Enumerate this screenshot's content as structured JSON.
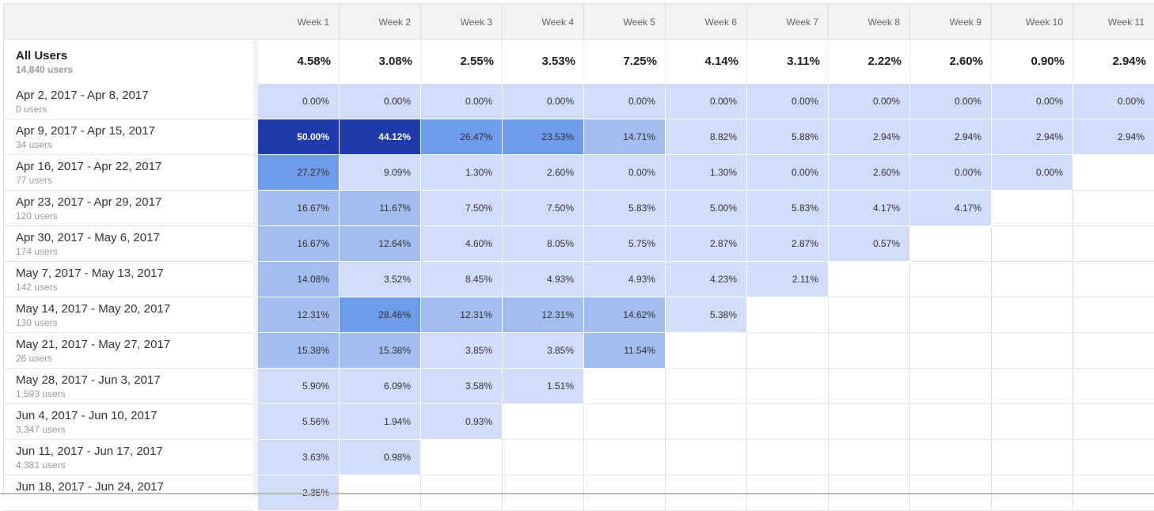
{
  "header": {
    "weeks": [
      "Week 1",
      "Week 2",
      "Week 3",
      "Week 4",
      "Week 5",
      "Week 6",
      "Week 7",
      "Week 8",
      "Week 9",
      "Week 10",
      "Week 11"
    ]
  },
  "all_users": {
    "label": "All Users",
    "users": "14,840 users",
    "values": [
      "4.58%",
      "3.08%",
      "2.55%",
      "3.53%",
      "7.25%",
      "4.14%",
      "3.11%",
      "2.22%",
      "2.60%",
      "0.90%",
      "2.94%"
    ]
  },
  "rows": [
    {
      "label": "Apr 2, 2017 - Apr 8, 2017",
      "users": "0 users",
      "values": [
        "0.00%",
        "0.00%",
        "0.00%",
        "0.00%",
        "0.00%",
        "0.00%",
        "0.00%",
        "0.00%",
        "0.00%",
        "0.00%",
        "0.00%"
      ]
    },
    {
      "label": "Apr 9, 2017 - Apr 15, 2017",
      "users": "34 users",
      "values": [
        "50.00%",
        "44.12%",
        "26.47%",
        "23.53%",
        "14.71%",
        "8.82%",
        "5.88%",
        "2.94%",
        "2.94%",
        "2.94%",
        "2.94%"
      ]
    },
    {
      "label": "Apr 16, 2017 - Apr 22, 2017",
      "users": "77 users",
      "values": [
        "27.27%",
        "9.09%",
        "1.30%",
        "2.60%",
        "0.00%",
        "1.30%",
        "0.00%",
        "2.60%",
        "0.00%",
        "0.00%"
      ]
    },
    {
      "label": "Apr 23, 2017 - Apr 29, 2017",
      "users": "120 users",
      "values": [
        "16.67%",
        "11.67%",
        "7.50%",
        "7.50%",
        "5.83%",
        "5.00%",
        "5.83%",
        "4.17%",
        "4.17%"
      ]
    },
    {
      "label": "Apr 30, 2017 - May 6, 2017",
      "users": "174 users",
      "values": [
        "16.67%",
        "12.64%",
        "4.60%",
        "8.05%",
        "5.75%",
        "2.87%",
        "2.87%",
        "0.57%"
      ]
    },
    {
      "label": "May 7, 2017 - May 13, 2017",
      "users": "142 users",
      "values": [
        "14.08%",
        "3.52%",
        "8.45%",
        "4.93%",
        "4.93%",
        "4.23%",
        "2.11%"
      ]
    },
    {
      "label": "May 14, 2017 - May 20, 2017",
      "users": "130 users",
      "values": [
        "12.31%",
        "28.46%",
        "12.31%",
        "12.31%",
        "14.62%",
        "5.38%"
      ]
    },
    {
      "label": "May 21, 2017 - May 27, 2017",
      "users": "26 users",
      "values": [
        "15.38%",
        "15.38%",
        "3.85%",
        "3.85%",
        "11.54%"
      ]
    },
    {
      "label": "May 28, 2017 - Jun 3, 2017",
      "users": "1,593 users",
      "values": [
        "5.90%",
        "6.09%",
        "3.58%",
        "1.51%"
      ]
    },
    {
      "label": "Jun 4, 2017 - Jun 10, 2017",
      "users": "3,347 users",
      "values": [
        "5.56%",
        "1.94%",
        "0.93%"
      ]
    },
    {
      "label": "Jun 11, 2017 - Jun 17, 2017",
      "users": "4,381 users",
      "values": [
        "3.63%",
        "0.98%"
      ]
    },
    {
      "label": "Jun 18, 2017 - Jun 24, 2017",
      "values": [
        "2.35%"
      ]
    }
  ]
}
